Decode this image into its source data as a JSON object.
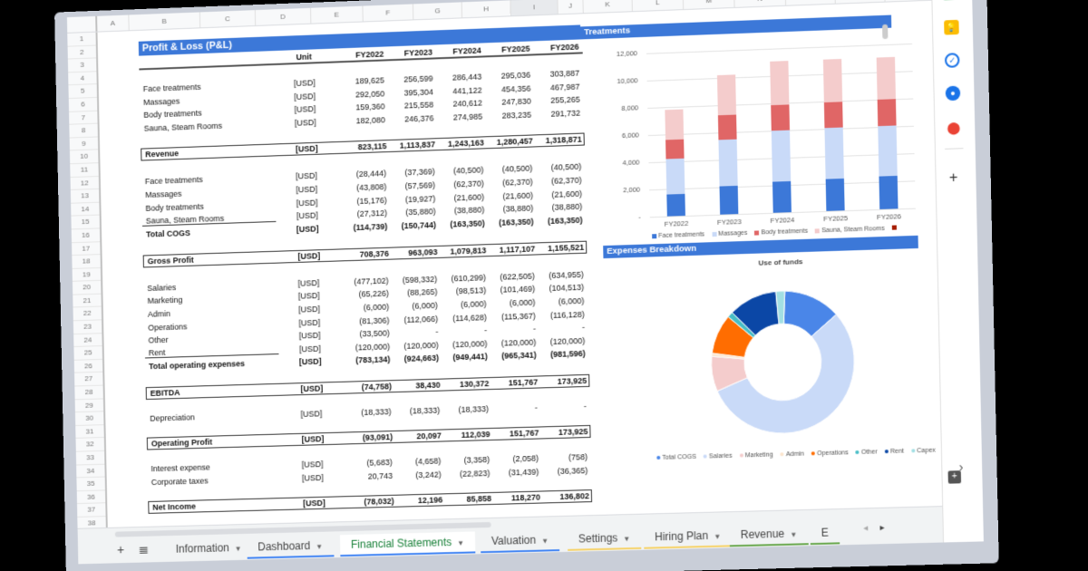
{
  "columns": [
    "A",
    "B",
    "C",
    "D",
    "E",
    "F",
    "G",
    "H",
    "I",
    "J",
    "K",
    "L",
    "M",
    "N",
    "O",
    "P"
  ],
  "rows": [
    "1",
    "2",
    "3",
    "4",
    "5",
    "6",
    "7",
    "8",
    "9",
    "10",
    "11",
    "12",
    "13",
    "14",
    "15",
    "16",
    "17",
    "18",
    "19",
    "20",
    "21",
    "22",
    "23",
    "24",
    "25",
    "26",
    "27",
    "28",
    "29",
    "30",
    "31",
    "32",
    "33",
    "34",
    "35",
    "36",
    "37",
    "38"
  ],
  "pl": {
    "title": "Profit & Loss (P&L)",
    "header": {
      "unit": "Unit",
      "years": [
        "FY2022",
        "FY2023",
        "FY2024",
        "FY2025",
        "FY2026"
      ]
    },
    "revenue_items": [
      {
        "label": "Face treatments",
        "unit": "[USD]",
        "values": [
          "189,625",
          "256,599",
          "286,443",
          "295,036",
          "303,887"
        ]
      },
      {
        "label": "Massages",
        "unit": "[USD]",
        "values": [
          "292,050",
          "395,304",
          "441,122",
          "454,356",
          "467,987"
        ]
      },
      {
        "label": "Body treatments",
        "unit": "[USD]",
        "values": [
          "159,360",
          "215,558",
          "240,612",
          "247,830",
          "255,265"
        ]
      },
      {
        "label": "Sauna, Steam Rooms",
        "unit": "[USD]",
        "values": [
          "182,080",
          "246,376",
          "274,985",
          "283,235",
          "291,732"
        ]
      }
    ],
    "revenue": {
      "label": "Revenue",
      "unit": "[USD]",
      "values": [
        "823,115",
        "1,113,837",
        "1,243,163",
        "1,280,457",
        "1,318,871"
      ]
    },
    "cogs_items": [
      {
        "label": "Face treatments",
        "unit": "[USD]",
        "values": [
          "(28,444)",
          "(37,369)",
          "(40,500)",
          "(40,500)",
          "(40,500)"
        ]
      },
      {
        "label": "Massages",
        "unit": "[USD]",
        "values": [
          "(43,808)",
          "(57,569)",
          "(62,370)",
          "(62,370)",
          "(62,370)"
        ]
      },
      {
        "label": "Body treatments",
        "unit": "[USD]",
        "values": [
          "(15,176)",
          "(19,927)",
          "(21,600)",
          "(21,600)",
          "(21,600)"
        ]
      },
      {
        "label": "Sauna, Steam Rooms",
        "unit": "[USD]",
        "values": [
          "(27,312)",
          "(35,880)",
          "(38,880)",
          "(38,880)",
          "(38,880)"
        ]
      }
    ],
    "total_cogs": {
      "label": "Total COGS",
      "unit": "[USD]",
      "values": [
        "(114,739)",
        "(150,744)",
        "(163,350)",
        "(163,350)",
        "(163,350)"
      ]
    },
    "gross_profit": {
      "label": "Gross Profit",
      "unit": "[USD]",
      "values": [
        "708,376",
        "963,093",
        "1,079,813",
        "1,117,107",
        "1,155,521"
      ]
    },
    "opex_items": [
      {
        "label": "Salaries",
        "unit": "[USD]",
        "values": [
          "(477,102)",
          "(598,332)",
          "(610,299)",
          "(622,505)",
          "(634,955)"
        ]
      },
      {
        "label": "Marketing",
        "unit": "[USD]",
        "values": [
          "(65,226)",
          "(88,265)",
          "(98,513)",
          "(101,469)",
          "(104,513)"
        ]
      },
      {
        "label": "Admin",
        "unit": "[USD]",
        "values": [
          "(6,000)",
          "(6,000)",
          "(6,000)",
          "(6,000)",
          "(6,000)"
        ]
      },
      {
        "label": "Operations",
        "unit": "[USD]",
        "values": [
          "(81,306)",
          "(112,066)",
          "(114,628)",
          "(115,367)",
          "(116,128)"
        ]
      },
      {
        "label": "Other",
        "unit": "[USD]",
        "values": [
          "(33,500)",
          "-",
          "-",
          "-",
          "-"
        ]
      },
      {
        "label": "Rent",
        "unit": "[USD]",
        "values": [
          "(120,000)",
          "(120,000)",
          "(120,000)",
          "(120,000)",
          "(120,000)"
        ]
      }
    ],
    "total_opex": {
      "label": "Total operating expenses",
      "unit": "[USD]",
      "values": [
        "(783,134)",
        "(924,663)",
        "(949,441)",
        "(965,341)",
        "(981,596)"
      ]
    },
    "ebitda": {
      "label": "EBITDA",
      "unit": "[USD]",
      "values": [
        "(74,758)",
        "38,430",
        "130,372",
        "151,767",
        "173,925"
      ]
    },
    "depreciation": {
      "label": "Depreciation",
      "unit": "[USD]",
      "values": [
        "(18,333)",
        "(18,333)",
        "(18,333)",
        "-",
        "-"
      ]
    },
    "operating_profit": {
      "label": "Operating Profit",
      "unit": "[USD]",
      "values": [
        "(93,091)",
        "20,097",
        "112,039",
        "151,767",
        "173,925"
      ]
    },
    "interest": {
      "label": "Interest expense",
      "unit": "[USD]",
      "values": [
        "(5,683)",
        "(4,658)",
        "(3,358)",
        "(2,058)",
        "(758)"
      ]
    },
    "taxes": {
      "label": "Corporate taxes",
      "unit": "[USD]",
      "values": [
        "20,743",
        "(3,242)",
        "(22,823)",
        "(31,439)",
        "(36,365)"
      ]
    },
    "net_income": {
      "label": "Net Income",
      "unit": "[USD]",
      "values": [
        "(78,032)",
        "12,196",
        "85,858",
        "118,270",
        "136,802"
      ]
    }
  },
  "chart_data": [
    {
      "type": "bar",
      "stacked": true,
      "title": "Treatments",
      "categories": [
        "FY2022",
        "FY2023",
        "FY2024",
        "FY2025",
        "FY2026"
      ],
      "series": [
        {
          "name": "Face treatments",
          "color": "#3c78d8",
          "values": [
            1600,
            2100,
            2300,
            2350,
            2400
          ]
        },
        {
          "name": "Massages",
          "color": "#c9daf8",
          "values": [
            2600,
            3400,
            3700,
            3700,
            3700
          ]
        },
        {
          "name": "Body treatments",
          "color": "#e06666",
          "values": [
            1400,
            1800,
            1900,
            1900,
            1900
          ]
        },
        {
          "name": "Sauna, Steam Rooms",
          "color": "#f4cccc",
          "values": [
            2200,
            2900,
            3200,
            3150,
            3100
          ]
        }
      ],
      "legend_extra_marker_color": "#a61c00",
      "yticks": [
        "12,000",
        "10,000",
        "8,000",
        "6,000",
        "4,000",
        "2,000",
        "-"
      ],
      "ylim": [
        0,
        12000
      ],
      "legend_position": "bottom"
    },
    {
      "type": "pie",
      "donut": true,
      "section_title": "Expenses Breakdown",
      "title": "Use of funds",
      "categories": [
        "Total COGS",
        "Salaries",
        "Marketing",
        "Admin",
        "Operations",
        "Other",
        "Rent",
        "Capex"
      ],
      "values": [
        13,
        55,
        8,
        0.7,
        9,
        1.3,
        11,
        2
      ],
      "colors": [
        "#4a86e8",
        "#c9daf8",
        "#f4cccc",
        "#fce5cd",
        "#ff6d01",
        "#46bdc6",
        "#0b47a6",
        "#a2dfe3"
      ],
      "legend_position": "bottom"
    }
  ],
  "tabs": [
    {
      "label": "Information",
      "accent": ""
    },
    {
      "label": "Dashboard",
      "accent": "#4285f4"
    },
    {
      "label": "Financial Statements",
      "accent": "#4285f4",
      "active": true
    },
    {
      "label": "Valuation",
      "accent": "#4285f4"
    },
    {
      "label": "Settings",
      "accent": "#f6d36b"
    },
    {
      "label": "Hiring Plan",
      "accent": "#f6d36b"
    },
    {
      "label": "Revenue",
      "accent": "#6aa84f"
    },
    {
      "label": "E",
      "accent": "#6aa84f"
    }
  ],
  "tab_controls": {
    "add": "+",
    "all_sheets": "≣",
    "prev": "◂",
    "next": "▸"
  },
  "side_panel": {
    "expand": "›",
    "add": "+"
  }
}
